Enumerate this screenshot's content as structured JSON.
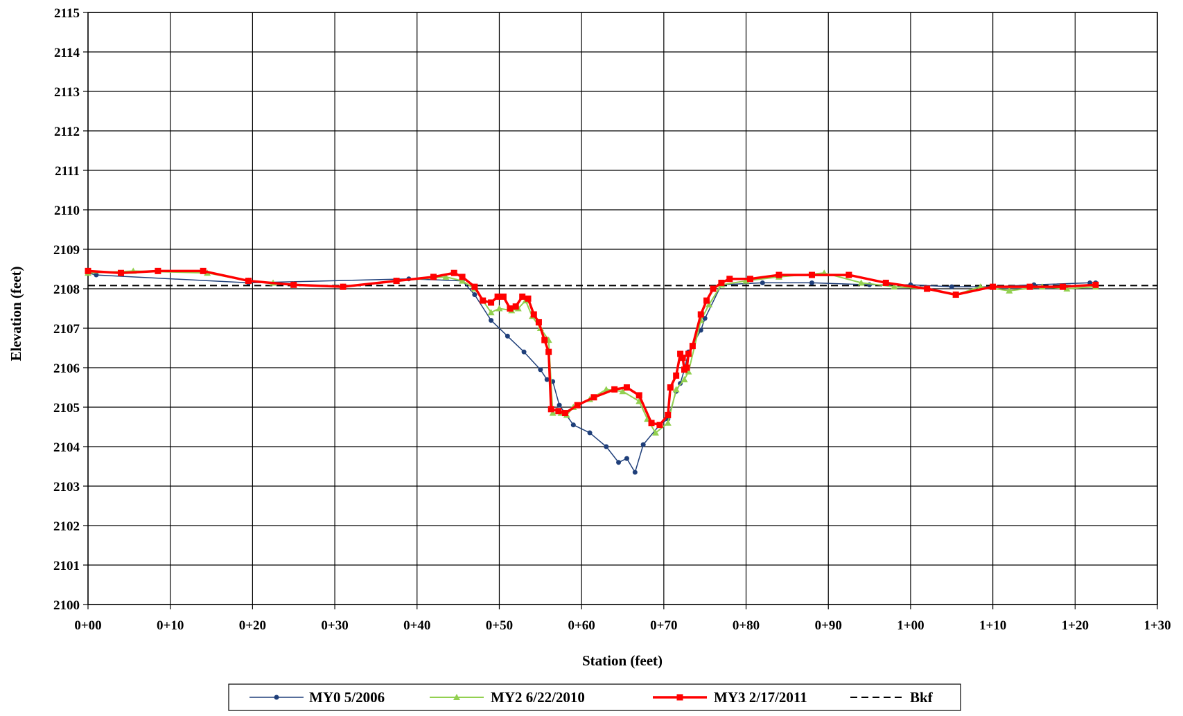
{
  "chart_data": {
    "type": "line",
    "title": "",
    "xlabel": "Station (feet)",
    "ylabel": "Elevation (feet)",
    "xlim": [
      0,
      130
    ],
    "ylim": [
      2100,
      2115
    ],
    "x_ticks": [
      0,
      10,
      20,
      30,
      40,
      50,
      60,
      70,
      80,
      90,
      100,
      110,
      120,
      130
    ],
    "x_tick_labels": [
      "0+00",
      "0+10",
      "0+20",
      "0+30",
      "0+40",
      "0+50",
      "0+60",
      "0+70",
      "0+80",
      "0+90",
      "1+00",
      "1+10",
      "1+20",
      "1+30"
    ],
    "y_ticks": [
      2100,
      2101,
      2102,
      2103,
      2104,
      2105,
      2106,
      2107,
      2108,
      2109,
      2110,
      2111,
      2112,
      2113,
      2114,
      2115
    ],
    "y_tick_labels": [
      "2100",
      "2101",
      "2102",
      "2103",
      "2104",
      "2105",
      "2106",
      "2107",
      "2108",
      "2109",
      "2110",
      "2111",
      "2112",
      "2113",
      "2114",
      "2115"
    ],
    "grid": true,
    "legend_position": "bottom",
    "series": [
      {
        "name": "MY0 5/2006",
        "color": "#1f3f7a",
        "marker": "circle",
        "x": [
          0,
          1,
          19.5,
          39,
          45.5,
          47,
          49,
          51,
          53,
          55,
          55.8,
          56.5,
          57.3,
          59,
          61,
          63,
          64.5,
          65.5,
          66.5,
          67.5,
          69.5,
          70.5,
          71.5,
          72,
          72.5,
          73,
          74.5,
          75,
          77,
          82,
          88,
          95,
          100,
          105,
          110,
          115,
          121.8,
          122.5
        ],
        "y": [
          2108.4,
          2108.35,
          2108.15,
          2108.25,
          2108.2,
          2107.85,
          2107.2,
          2106.8,
          2106.4,
          2105.95,
          2105.7,
          2105.65,
          2105.05,
          2104.55,
          2104.35,
          2104.0,
          2103.6,
          2103.7,
          2103.35,
          2104.05,
          2104.55,
          2104.7,
          2105.4,
          2105.6,
          2105.95,
          2106.4,
          2106.95,
          2107.25,
          2108.1,
          2108.15,
          2108.15,
          2108.1,
          2108.1,
          2108.05,
          2108.05,
          2108.1,
          2108.15,
          2108.15
        ]
      },
      {
        "name": "MY2 6/22/2010",
        "color": "#92d050",
        "marker": "triangle",
        "x": [
          0,
          5.5,
          14.5,
          19.5,
          22.5,
          25,
          31,
          37.5,
          43.5,
          45.5,
          47,
          48,
          49,
          50,
          51.5,
          52.3,
          53.2,
          54,
          55,
          56,
          56.5,
          57.5,
          58.2,
          59,
          61,
          63,
          65,
          67,
          68,
          69,
          70.5,
          71.5,
          72.5,
          73,
          74.5,
          75.5,
          77,
          80,
          84,
          89.5,
          94,
          98,
          102,
          105.5,
          108.5,
          112,
          116,
          119,
          122.5
        ],
        "y": [
          2108.4,
          2108.45,
          2108.4,
          2108.2,
          2108.15,
          2108.1,
          2108.05,
          2108.2,
          2108.3,
          2108.2,
          2108.0,
          2107.7,
          2107.4,
          2107.5,
          2107.45,
          2107.5,
          2107.7,
          2107.3,
          2107.0,
          2106.7,
          2104.85,
          2104.85,
          2104.8,
          2105.0,
          2105.2,
          2105.45,
          2105.4,
          2105.15,
          2104.7,
          2104.35,
          2104.6,
          2105.45,
          2105.7,
          2105.9,
          2107.2,
          2107.6,
          2108.1,
          2108.2,
          2108.3,
          2108.4,
          2108.15,
          2108.05,
          2108.0,
          2107.85,
          2108.05,
          2107.95,
          2108.05,
          2108.0,
          2108.05
        ]
      },
      {
        "name": "MY3 2/17/2011",
        "color": "#ff0000",
        "marker": "square",
        "x": [
          0,
          4,
          8.5,
          14,
          19.5,
          25,
          31,
          37.5,
          42,
          44.5,
          45.5,
          47,
          48,
          49,
          49.8,
          50.5,
          51.3,
          52,
          52.8,
          53.5,
          54.2,
          54.8,
          55.5,
          56,
          56.3,
          57.2,
          58,
          59.5,
          61.5,
          64,
          65.5,
          67,
          68.5,
          69.5,
          70.5,
          70.8,
          71.5,
          72,
          72.3,
          72.5,
          72.8,
          73,
          73.5,
          74.5,
          75.2,
          76,
          77,
          78,
          80.5,
          84,
          88,
          92.5,
          97,
          102,
          105.5,
          110,
          114.5,
          118.5,
          122.5
        ],
        "y": [
          2108.45,
          2108.4,
          2108.45,
          2108.45,
          2108.2,
          2108.1,
          2108.05,
          2108.2,
          2108.3,
          2108.4,
          2108.3,
          2108.05,
          2107.7,
          2107.65,
          2107.8,
          2107.8,
          2107.5,
          2107.55,
          2107.8,
          2107.75,
          2107.35,
          2107.15,
          2106.7,
          2106.4,
          2104.95,
          2104.9,
          2104.85,
          2105.05,
          2105.25,
          2105.45,
          2105.5,
          2105.3,
          2104.6,
          2104.55,
          2104.8,
          2105.5,
          2105.8,
          2106.35,
          2106.25,
          2105.95,
          2106.0,
          2106.35,
          2106.55,
          2107.35,
          2107.7,
          2108.0,
          2108.15,
          2108.25,
          2108.25,
          2108.35,
          2108.35,
          2108.35,
          2108.15,
          2108.0,
          2107.85,
          2108.05,
          2108.05,
          2108.05,
          2108.1
        ]
      },
      {
        "name": "Bkf",
        "color": "#000000",
        "marker": "none",
        "dash": true,
        "x": [
          0,
          130
        ],
        "y": [
          2108.08,
          2108.08
        ]
      }
    ]
  }
}
